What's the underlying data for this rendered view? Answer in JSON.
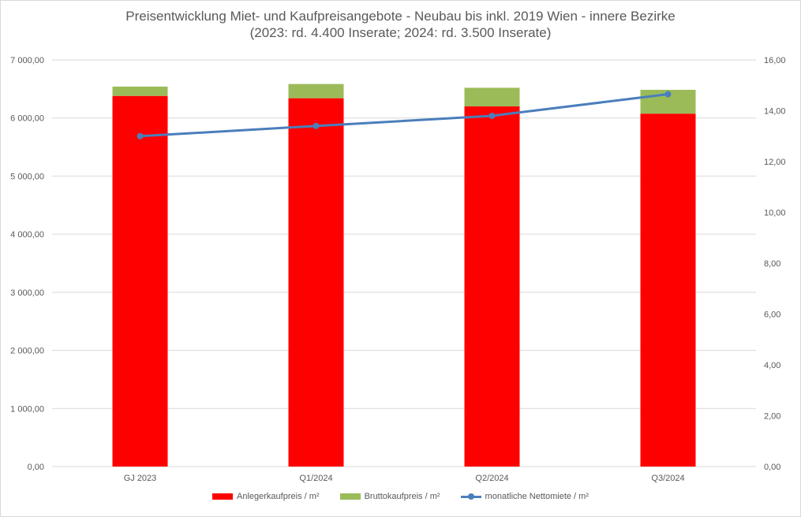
{
  "chart_data": {
    "type": "bar",
    "title_line1": "Preisentwicklung Miet- und Kaufpreisangebote - Neubau bis inkl. 2019 Wien - innere Bezirke",
    "title_line2": "(2023: rd. 4.400 Inserate; 2024: rd. 3.500 Inserate)",
    "categories": [
      "GJ 2023",
      "Q1/2024",
      "Q2/2024",
      "Q3/2024"
    ],
    "stacked": true,
    "series": [
      {
        "name": "Anlegerkaufpreis / m²",
        "type": "bar",
        "axis": "left",
        "color": "#ff0000",
        "values": [
          6380,
          6340,
          6200,
          6075
        ]
      },
      {
        "name": "Bruttokaufpreis / m²",
        "type": "bar",
        "axis": "left",
        "color": "#9bbb59",
        "values": [
          160,
          245,
          320,
          410
        ]
      },
      {
        "name": "monatliche Nettomiete / m²",
        "type": "line",
        "axis": "right",
        "color": "#4a7ebb",
        "values": [
          13.0,
          13.4,
          13.8,
          14.65
        ]
      }
    ],
    "ylim_left": [
      0,
      7000
    ],
    "ylim_right": [
      0,
      16
    ],
    "yticks_left": [
      "0,00",
      "1 000,00",
      "2 000,00",
      "3 000,00",
      "4 000,00",
      "5 000,00",
      "6 000,00",
      "7 000,00"
    ],
    "yticks_right": [
      "0,00",
      "2,00",
      "4,00",
      "6,00",
      "8,00",
      "10,00",
      "12,00",
      "14,00",
      "16,00"
    ],
    "grid": true,
    "legend_position": "bottom"
  }
}
